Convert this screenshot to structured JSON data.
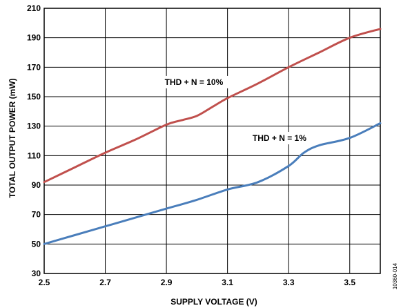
{
  "chart_data": {
    "type": "line",
    "xlabel": "SUPPLY VOLTAGE (V)",
    "ylabel": "TOTAL OUTPUT POWER (mW)",
    "xlim": [
      2.5,
      3.6
    ],
    "ylim": [
      30,
      210
    ],
    "xticks": [
      2.5,
      2.7,
      2.9,
      3.1,
      3.3,
      3.5
    ],
    "xtick_labels": [
      "2.5",
      "2.7",
      "2.9",
      "3.1",
      "3.3",
      "3.5"
    ],
    "yticks": [
      30,
      50,
      70,
      90,
      110,
      130,
      150,
      170,
      190,
      210
    ],
    "ytick_labels": [
      "30",
      "50",
      "70",
      "90",
      "110",
      "130",
      "150",
      "170",
      "190",
      "210"
    ],
    "grid": true,
    "figure_id": "10360-014",
    "series": [
      {
        "name": "THD + N = 10%",
        "color": "#c0504d",
        "x": [
          2.5,
          2.6,
          2.7,
          2.8,
          2.9,
          2.95,
          3.0,
          3.05,
          3.1,
          3.2,
          3.3,
          3.4,
          3.5,
          3.6
        ],
        "y": [
          92,
          102,
          112,
          121,
          131,
          134,
          137,
          143,
          149,
          159,
          170,
          180,
          190,
          196
        ]
      },
      {
        "name": "THD + N = 1%",
        "color": "#4a7ebb",
        "x": [
          2.5,
          2.6,
          2.7,
          2.8,
          2.9,
          3.0,
          3.1,
          3.2,
          3.3,
          3.35,
          3.4,
          3.5,
          3.6
        ],
        "y": [
          50,
          56,
          62,
          68,
          74,
          80,
          87,
          92,
          103,
          112,
          117,
          122,
          132
        ]
      }
    ],
    "annotations": [
      {
        "text": "THD + N = 10%",
        "x": 2.99,
        "y": 158
      },
      {
        "text": "THD + N = 1%",
        "x": 3.27,
        "y": 120
      }
    ]
  }
}
